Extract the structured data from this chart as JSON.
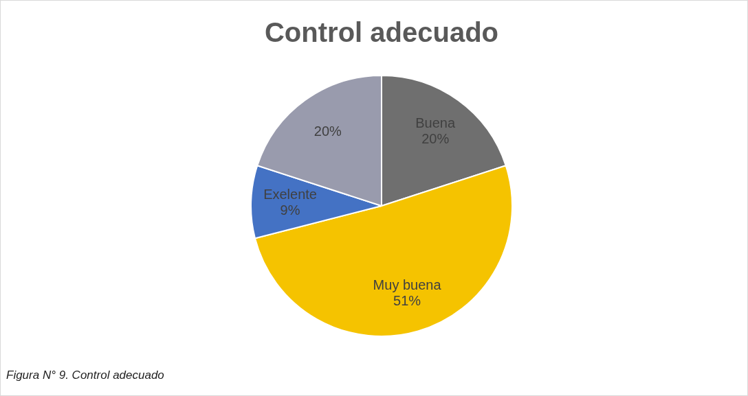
{
  "chart_data": {
    "type": "pie",
    "title": "Control adecuado",
    "categories": [
      "Buena",
      "Muy buena",
      "Exelente",
      null
    ],
    "values": [
      20,
      51,
      9,
      20
    ],
    "colors": [
      "#6f6f6f",
      "#f5c300",
      "#4472c4",
      "#999bad"
    ],
    "value_labels": [
      "20%",
      "51%",
      "9%",
      "20%"
    ],
    "legend": false,
    "annotations": [
      "Figura N° 9. Control adecuado"
    ]
  }
}
